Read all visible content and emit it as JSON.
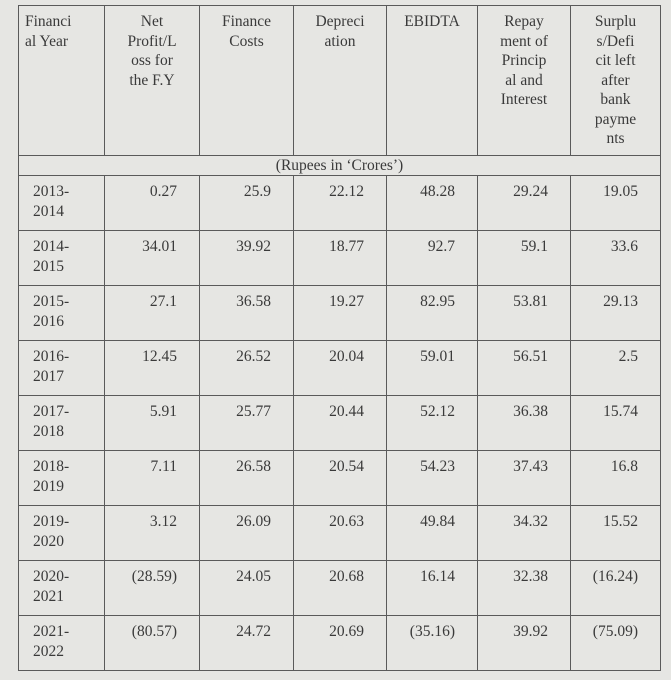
{
  "table": {
    "header": [
      [
        "Financi",
        "al Year"
      ],
      [
        "Net",
        "Profit/L",
        "oss for",
        "the F.Y"
      ],
      [
        "Finance",
        "Costs"
      ],
      [
        "Depreci",
        "ation"
      ],
      [
        "EBIDTA"
      ],
      [
        "Repay",
        "ment of",
        "Princip",
        "al and",
        "Interest"
      ],
      [
        "Surplu",
        "s/Defi",
        "cit left",
        "after",
        "bank",
        "payme",
        "nts"
      ]
    ],
    "unit": "(Rupees in ‘Crores’)",
    "rows": [
      [
        "2013-2014",
        "0.27",
        "25.9",
        "22.12",
        "48.28",
        "29.24",
        "19.05"
      ],
      [
        "2014-2015",
        "34.01",
        "39.92",
        "18.77",
        "92.7",
        "59.1",
        "33.6"
      ],
      [
        "2015-2016",
        "27.1",
        "36.58",
        "19.27",
        "82.95",
        "53.81",
        "29.13"
      ],
      [
        "2016-2017",
        "12.45",
        "26.52",
        "20.04",
        "59.01",
        "56.51",
        "2.5"
      ],
      [
        "2017-2018",
        "5.91",
        "25.77",
        "20.44",
        "52.12",
        "36.38",
        "15.74"
      ],
      [
        "2018-2019",
        "7.11",
        "26.58",
        "20.54",
        "54.23",
        "37.43",
        "16.8"
      ],
      [
        "2019-2020",
        "3.12",
        "26.09",
        "20.63",
        "49.84",
        "34.32",
        "15.52"
      ],
      [
        "2020-2021",
        "(28.59)",
        "24.05",
        "20.68",
        "16.14",
        "32.38",
        "(16.24)"
      ],
      [
        "2021-2022",
        "(80.57)",
        "24.72",
        "20.69",
        "(35.16)",
        "39.92",
        "(75.09)"
      ]
    ]
  }
}
